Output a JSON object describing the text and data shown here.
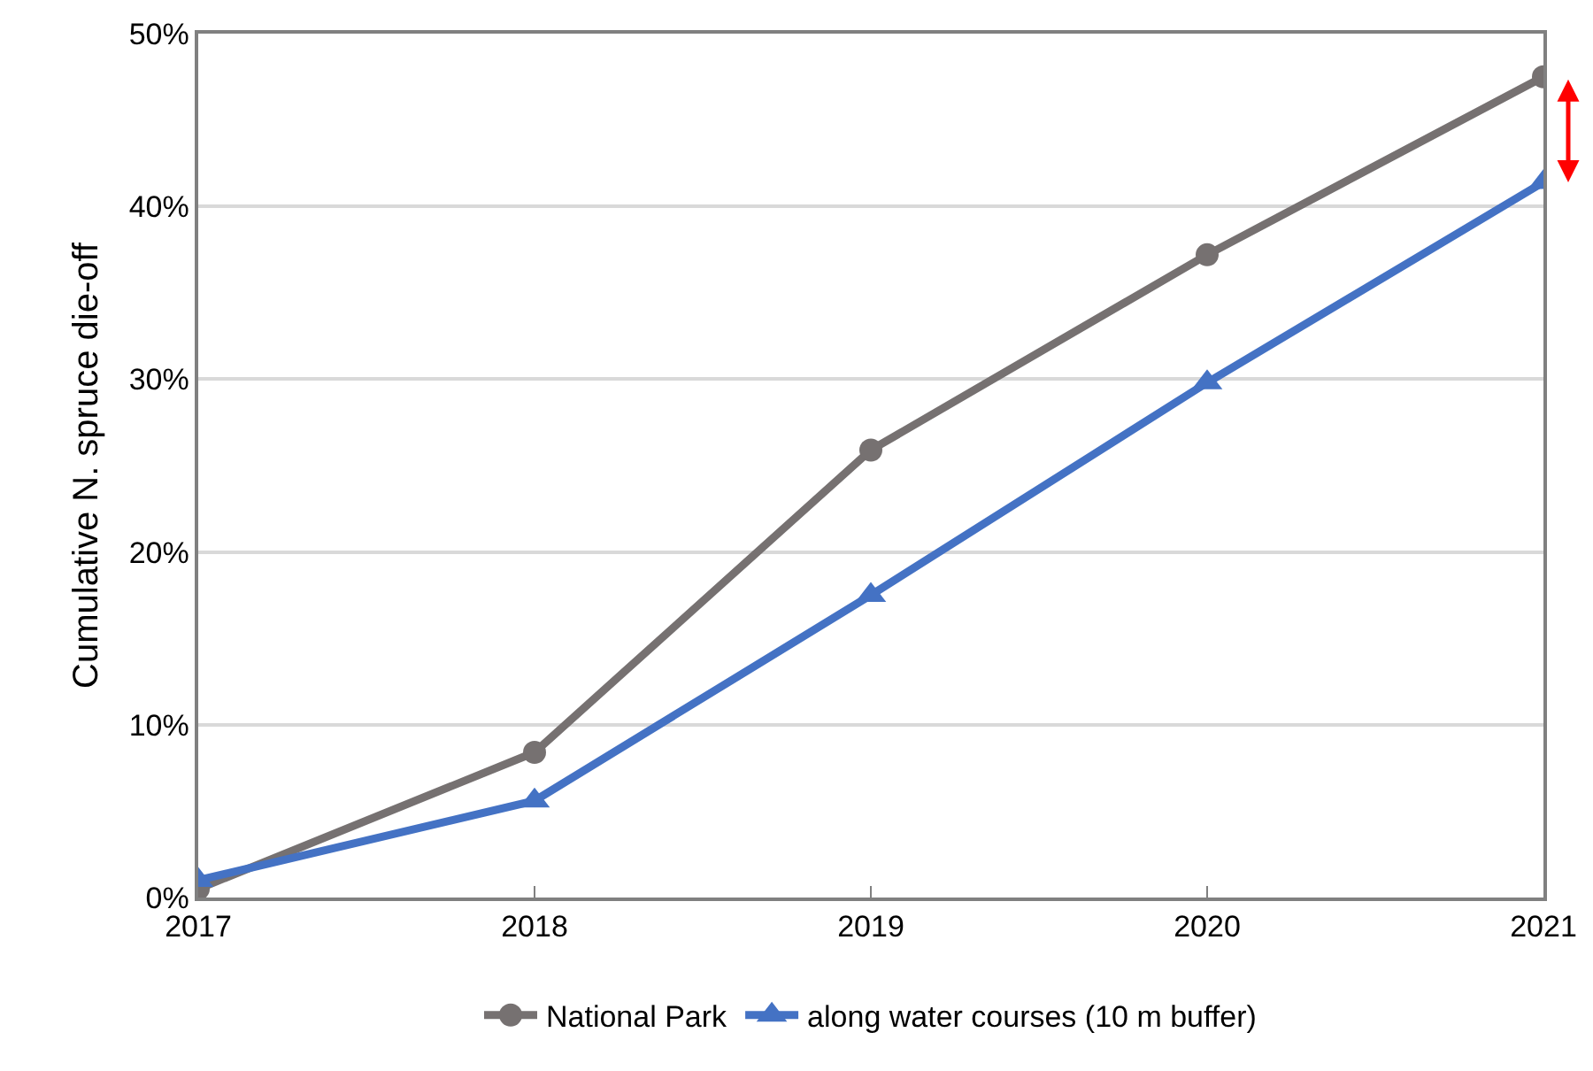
{
  "chart_data": {
    "type": "line",
    "ylabel": "Cumulative N. spruce die-off",
    "x": [
      2017,
      2018,
      2019,
      2020,
      2021
    ],
    "series": [
      {
        "name": "National Park",
        "color": "#767171",
        "marker": "circle",
        "values": [
          0.5,
          8.4,
          25.9,
          37.2,
          47.5
        ]
      },
      {
        "name": "along water courses (10 m buffer)",
        "color": "#4472c4",
        "marker": "triangle",
        "values": [
          1.0,
          5.6,
          17.5,
          29.8,
          41.4
        ]
      }
    ],
    "xlim": [
      2017,
      2021
    ],
    "xticks": [
      2017,
      2018,
      2019,
      2020,
      2021
    ],
    "ylim": [
      0,
      50
    ],
    "yticks": [
      {
        "value": 0,
        "label": "0%"
      },
      {
        "value": 10,
        "label": "10%"
      },
      {
        "value": 20,
        "label": "20%"
      },
      {
        "value": 30,
        "label": "30%"
      },
      {
        "value": 40,
        "label": "40%"
      },
      {
        "value": 50,
        "label": "50%"
      }
    ],
    "grid": "y",
    "legend": "bottom",
    "line_style": "solid"
  }
}
